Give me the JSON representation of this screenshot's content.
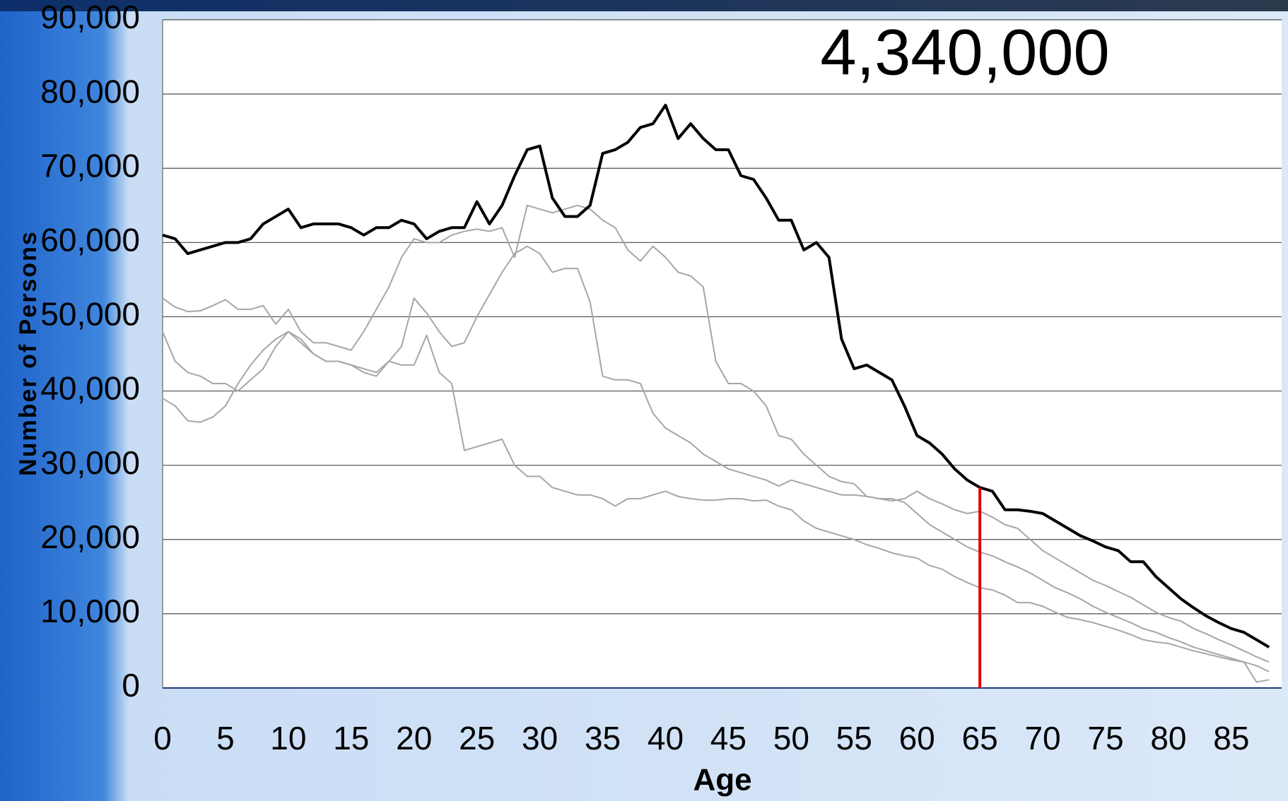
{
  "chart_data": {
    "type": "line",
    "annotation": "4,340,000",
    "xlabel": "Age",
    "ylabel": "Number of Persons",
    "x": [
      0,
      1,
      2,
      3,
      4,
      5,
      6,
      7,
      8,
      9,
      10,
      11,
      12,
      13,
      14,
      15,
      16,
      17,
      18,
      19,
      20,
      21,
      22,
      23,
      24,
      25,
      26,
      27,
      28,
      29,
      30,
      31,
      32,
      33,
      34,
      35,
      36,
      37,
      38,
      39,
      40,
      41,
      42,
      43,
      44,
      45,
      46,
      47,
      48,
      49,
      50,
      51,
      52,
      53,
      54,
      55,
      56,
      57,
      58,
      59,
      60,
      61,
      62,
      63,
      64,
      65,
      66,
      67,
      68,
      69,
      70,
      71,
      72,
      73,
      74,
      75,
      76,
      77,
      78,
      79,
      80,
      81,
      82,
      83,
      84,
      85,
      86,
      87,
      88
    ],
    "series": [
      {
        "color": "#000000",
        "width": 4,
        "values": [
          61000,
          60500,
          58500,
          59000,
          59500,
          60000,
          60000,
          60500,
          62500,
          63500,
          64500,
          62000,
          62500,
          62500,
          62500,
          62000,
          61000,
          62000,
          62000,
          63000,
          62500,
          60500,
          61500,
          62000,
          62000,
          65500,
          62500,
          65000,
          69000,
          72500,
          73000,
          66000,
          63500,
          63500,
          65000,
          72000,
          72500,
          73500,
          75500,
          76000,
          78500,
          74000,
          76000,
          74000,
          72500,
          72500,
          69000,
          68500,
          66000,
          63000,
          63000,
          59000,
          60000,
          58000,
          47000,
          43000,
          43500,
          42500,
          41500,
          38000,
          34000,
          33000,
          31500,
          29500,
          28000,
          27000,
          26500,
          24000,
          24000,
          23800,
          23500,
          22500,
          21500,
          20500,
          19800,
          19000,
          18500,
          17000,
          17000,
          15000,
          13500,
          12000,
          10800,
          9700,
          8800,
          8000,
          7500,
          6500,
          5500
        ]
      },
      {
        "color": "#a6a6a6",
        "width": 2,
        "values": [
          52500,
          51300,
          50700,
          50800,
          51500,
          52300,
          51000,
          51000,
          51500,
          49000,
          51000,
          48000,
          46500,
          46500,
          46000,
          45500,
          48000,
          51000,
          54000,
          58000,
          60500,
          60000,
          60000,
          61000,
          61500,
          61800,
          61500,
          62000,
          58000,
          65000,
          64500,
          64000,
          64500,
          65000,
          64500,
          63000,
          62000,
          59000,
          57500,
          59500,
          58000,
          56000,
          55500,
          54000,
          44000,
          41000,
          41000,
          40000,
          38000,
          34000,
          33500,
          31500,
          30000,
          28500,
          27800,
          27500,
          25800,
          25500,
          25200,
          25500,
          26500,
          25500,
          24800,
          24000,
          23500,
          23800,
          23000,
          22000,
          21500,
          20000,
          18500,
          17500,
          16500,
          15500,
          14500,
          13800,
          13000,
          12200,
          11200,
          10200,
          9500,
          9000,
          8000,
          7300,
          6500,
          5800,
          5000,
          4200,
          3500
        ]
      },
      {
        "color": "#a6a6a6",
        "width": 2,
        "values": [
          48000,
          44000,
          42500,
          42000,
          41000,
          41000,
          40000,
          41500,
          43000,
          46000,
          48000,
          47000,
          45000,
          44000,
          44000,
          43500,
          42500,
          42000,
          44000,
          46000,
          52500,
          50500,
          48000,
          46000,
          46500,
          50000,
          53000,
          56000,
          58500,
          59500,
          58500,
          56000,
          56500,
          56500,
          52000,
          42000,
          41500,
          41500,
          41000,
          37000,
          35000,
          34000,
          33000,
          31500,
          30500,
          29500,
          29000,
          28500,
          28000,
          27200,
          28000,
          27500,
          27000,
          26500,
          26000,
          26000,
          25800,
          25500,
          25500,
          25000,
          23500,
          22000,
          21000,
          20000,
          19000,
          18300,
          17800,
          17000,
          16300,
          15500,
          14500,
          13500,
          12800,
          12000,
          11000,
          10200,
          9500,
          8800,
          8000,
          7500,
          6800,
          6200,
          5500,
          5000,
          4500,
          4000,
          3500,
          3000,
          2200
        ]
      },
      {
        "color": "#a6a6a6",
        "width": 2,
        "values": [
          39000,
          38000,
          36000,
          35800,
          36500,
          38000,
          41000,
          43500,
          45500,
          47000,
          48000,
          46500,
          45000,
          44000,
          44000,
          43500,
          43000,
          42500,
          44000,
          43500,
          43500,
          47500,
          42500,
          41000,
          32000,
          32500,
          33000,
          33500,
          30000,
          28500,
          28500,
          27000,
          26500,
          26000,
          26000,
          25500,
          24500,
          25500,
          25500,
          26000,
          26500,
          25800,
          25500,
          25300,
          25300,
          25500,
          25500,
          25200,
          25300,
          24500,
          24000,
          22500,
          21500,
          21000,
          20500,
          20000,
          19300,
          18800,
          18200,
          17800,
          17500,
          16500,
          16000,
          15000,
          14200,
          13500,
          13200,
          12500,
          11500,
          11500,
          11000,
          10200,
          9500,
          9200,
          8800,
          8300,
          7800,
          7200,
          6500,
          6200,
          6000,
          5500,
          5000,
          4600,
          4200,
          3800,
          3500,
          800,
          1100
        ]
      }
    ],
    "marker": {
      "x": 65,
      "color": "#e00000"
    },
    "xlim": [
      0,
      89
    ],
    "ylim": [
      0,
      90000
    ],
    "xticks": [
      0,
      5,
      10,
      15,
      20,
      25,
      30,
      35,
      40,
      45,
      50,
      55,
      60,
      65,
      70,
      75,
      80,
      85
    ],
    "yticks": [
      0,
      {
        "value": 10000,
        "label": "10,000"
      },
      {
        "value": 20000,
        "label": "20,000"
      },
      {
        "value": 30000,
        "label": "30,000"
      },
      {
        "value": 40000,
        "label": "40,000"
      },
      {
        "value": 50000,
        "label": "50,000"
      },
      {
        "value": 60000,
        "label": "60,000"
      },
      {
        "value": 70000,
        "label": "70,000"
      },
      {
        "value": 80000,
        "label": "80,000"
      },
      {
        "value": 90000,
        "label": "90,000"
      }
    ],
    "grid": true
  }
}
